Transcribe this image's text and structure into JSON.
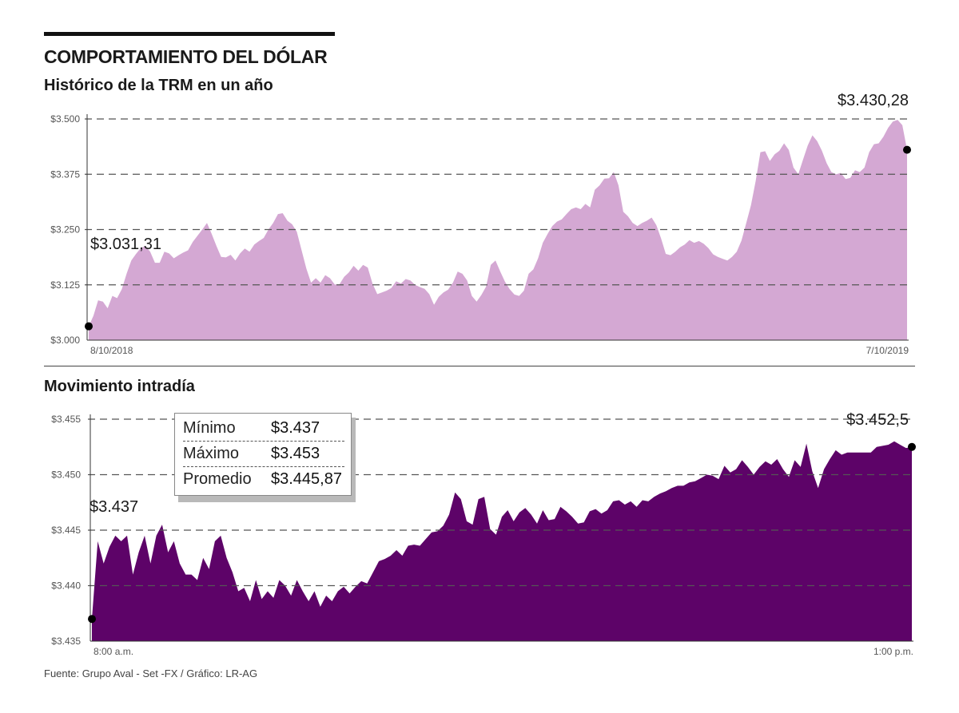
{
  "header": {
    "title": "COMPORTAMIENTO DEL DÓLAR",
    "subtitle_history": "Histórico de la TRM en un año",
    "subtitle_intraday": "Movimiento intradía"
  },
  "stats": [
    {
      "label": "Mínimo",
      "value": "$3.437"
    },
    {
      "label": "Máximo",
      "value": "$3.453"
    },
    {
      "label": "Promedio",
      "value": "$3.445,87"
    }
  ],
  "footer": {
    "source": "Fuente: Grupo Aval - Set -FX / Gráfico: LR-AG"
  },
  "colors": {
    "history_fill": "#d4a8d3",
    "intraday_fill": "#5d0368",
    "grid": "#555555",
    "marker": "#000000"
  },
  "chart_data": [
    {
      "type": "area",
      "title": "Histórico de la TRM en un año",
      "x_start_label": "8/10/2018",
      "x_end_label": "7/10/2019",
      "ylim": [
        3000,
        3500
      ],
      "yticks": [
        3000,
        3125,
        3250,
        3375,
        3500
      ],
      "ytick_labels": [
        "$3.000",
        "$3.125",
        "$3.250",
        "$3.375",
        "$3.500"
      ],
      "grid": true,
      "start_label": "$3.031,31",
      "end_label": "$3.430,28",
      "start_value": 3031.31,
      "end_value": 3430.28,
      "values": [
        3031.31,
        3055,
        3090,
        3087,
        3072,
        3100,
        3095,
        3115,
        3150,
        3180,
        3195,
        3208,
        3213,
        3200,
        3175,
        3175,
        3200,
        3196,
        3185,
        3192,
        3198,
        3203,
        3222,
        3236,
        3250,
        3265,
        3240,
        3213,
        3188,
        3187,
        3193,
        3180,
        3196,
        3207,
        3200,
        3216,
        3224,
        3231,
        3250,
        3265,
        3285,
        3287,
        3270,
        3262,
        3245,
        3203,
        3162,
        3130,
        3140,
        3130,
        3147,
        3140,
        3126,
        3126,
        3143,
        3153,
        3168,
        3157,
        3170,
        3164,
        3128,
        3104,
        3108,
        3112,
        3118,
        3133,
        3128,
        3138,
        3135,
        3125,
        3120,
        3116,
        3104,
        3080,
        3098,
        3108,
        3114,
        3130,
        3155,
        3150,
        3135,
        3100,
        3087,
        3102,
        3121,
        3170,
        3180,
        3155,
        3132,
        3115,
        3103,
        3100,
        3112,
        3150,
        3160,
        3185,
        3220,
        3240,
        3258,
        3268,
        3273,
        3285,
        3296,
        3300,
        3296,
        3308,
        3300,
        3340,
        3350,
        3365,
        3366,
        3380,
        3350,
        3290,
        3280,
        3265,
        3258,
        3265,
        3270,
        3277,
        3260,
        3230,
        3195,
        3192,
        3200,
        3210,
        3216,
        3226,
        3220,
        3224,
        3218,
        3208,
        3194,
        3188,
        3184,
        3180,
        3188,
        3200,
        3225,
        3265,
        3305,
        3360,
        3425,
        3427,
        3405,
        3420,
        3428,
        3445,
        3430,
        3390,
        3375,
        3408,
        3440,
        3463,
        3450,
        3428,
        3400,
        3380,
        3375,
        3378,
        3364,
        3367,
        3384,
        3380,
        3390,
        3425,
        3443,
        3445,
        3460,
        3480,
        3494,
        3498,
        3486,
        3430.28
      ]
    },
    {
      "type": "area",
      "title": "Movimiento intradía",
      "x_start_label": "8:00 a.m.",
      "x_end_label": "1:00 p.m.",
      "ylim": [
        3.435,
        3.455
      ],
      "yticks": [
        3.435,
        3.44,
        3.445,
        3.45,
        3.455
      ],
      "ytick_labels": [
        "$3.435",
        "$3.440",
        "$3.445",
        "$3.450",
        "$3.455"
      ],
      "grid": true,
      "start_label": "$3.437",
      "end_label": "$3.452,5",
      "start_value": 3.437,
      "end_value": 3.4525,
      "values": [
        3.437,
        3.444,
        3.442,
        3.4435,
        3.4445,
        3.444,
        3.4445,
        3.441,
        3.443,
        3.4445,
        3.442,
        3.4445,
        3.4455,
        3.443,
        3.444,
        3.442,
        3.441,
        3.441,
        3.4405,
        3.4425,
        3.4415,
        3.444,
        3.4445,
        3.4425,
        3.4412,
        3.4395,
        3.4398,
        3.4386,
        3.4405,
        3.4388,
        3.4395,
        3.4389,
        3.4405,
        3.44,
        3.4391,
        3.4405,
        3.4395,
        3.4386,
        3.4395,
        3.4381,
        3.4391,
        3.4386,
        3.4395,
        3.4399,
        3.4393,
        3.4399,
        3.4404,
        3.4402,
        3.4412,
        3.4422,
        3.4424,
        3.4427,
        3.4432,
        3.4427,
        3.4436,
        3.4437,
        3.4436,
        3.4442,
        3.4448,
        3.4449,
        3.4454,
        3.4464,
        3.4484,
        3.4478,
        3.4458,
        3.4455,
        3.4478,
        3.448,
        3.4451,
        3.4446,
        3.4462,
        3.4468,
        3.4458,
        3.4466,
        3.447,
        3.4464,
        3.4456,
        3.4468,
        3.4459,
        3.446,
        3.4471,
        3.4467,
        3.4462,
        3.4456,
        3.4457,
        3.4467,
        3.4469,
        3.4465,
        3.4468,
        3.4476,
        3.4477,
        3.4473,
        3.4476,
        3.4471,
        3.4477,
        3.4476,
        3.448,
        3.4483,
        3.4485,
        3.4488,
        3.449,
        3.449,
        3.4493,
        3.4494,
        3.4497,
        3.45,
        3.4499,
        3.4496,
        3.4508,
        3.4502,
        3.4505,
        3.4513,
        3.4507,
        3.45,
        3.4507,
        3.4512,
        3.4509,
        3.4514,
        3.4505,
        3.4498,
        3.4513,
        3.4507,
        3.4528,
        3.4503,
        3.4488,
        3.4505,
        3.4514,
        3.4522,
        3.4518,
        3.452,
        3.452,
        3.452,
        3.452,
        3.452,
        3.4525,
        3.4526,
        3.4527,
        3.453,
        3.4527,
        3.4524,
        3.4525
      ]
    }
  ]
}
